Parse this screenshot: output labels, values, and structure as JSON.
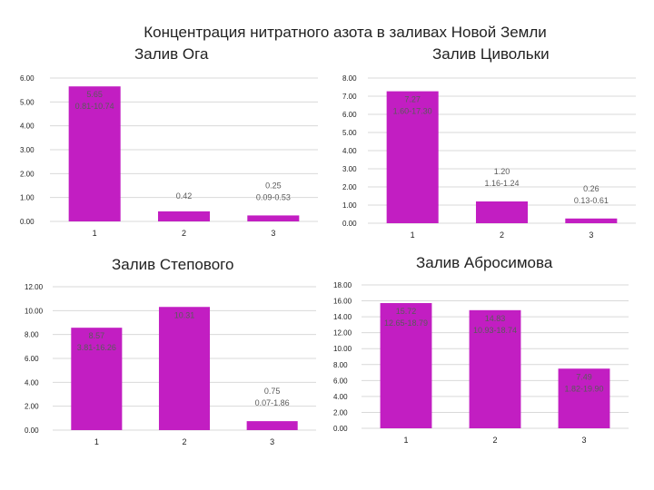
{
  "main_title": "Концентрация нитратного азота в заливах Новой Земли",
  "colors": {
    "bar": "#c21ec2",
    "grid": "#d9d9d9"
  },
  "chart_data": [
    {
      "type": "bar",
      "title": "Залив Ога",
      "categories": [
        "1",
        "2",
        "3"
      ],
      "values": [
        5.65,
        0.42,
        0.25
      ],
      "ranges": [
        "0.81-10.74",
        "",
        "0.09-0.53"
      ],
      "ylim": [
        0,
        6
      ],
      "yticks": [
        "6.00",
        "5.00",
        "4.00",
        "3.00",
        "2.00",
        "1.00",
        "0.00"
      ],
      "grid": true
    },
    {
      "type": "bar",
      "title": "Залив Цивольки",
      "categories": [
        "1",
        "2",
        "3"
      ],
      "values": [
        7.27,
        1.2,
        0.26
      ],
      "ranges": [
        "1.60-17.30",
        "1.16-1.24",
        "0.13-0.61"
      ],
      "ylim": [
        0,
        8
      ],
      "yticks": [
        "8.00",
        "7.00",
        "6.00",
        "5.00",
        "4.00",
        "3.00",
        "2.00",
        "1.00",
        "0.00"
      ],
      "grid": true
    },
    {
      "type": "bar",
      "title": "Залив Степового",
      "categories": [
        "1",
        "2",
        "3"
      ],
      "values": [
        8.57,
        10.31,
        0.75
      ],
      "ranges": [
        "3.81-16.26",
        "",
        "0.07-1.86"
      ],
      "ylim": [
        0,
        12
      ],
      "yticks": [
        "12.00",
        "10.00",
        "8.00",
        "6.00",
        "4.00",
        "2.00",
        "0.00"
      ],
      "grid": true
    },
    {
      "type": "bar",
      "title": "Залив Абросимова",
      "categories": [
        "1",
        "2",
        "3"
      ],
      "values": [
        15.72,
        14.83,
        7.49
      ],
      "ranges": [
        "12.65-18.79",
        "10.93-18.74",
        "1.82-19.90"
      ],
      "ylim": [
        0,
        18
      ],
      "yticks": [
        "18.00",
        "16.00",
        "14.00",
        "12.00",
        "10.00",
        "8.00",
        "6.00",
        "4.00",
        "2.00",
        "0.00"
      ],
      "grid": true
    }
  ]
}
